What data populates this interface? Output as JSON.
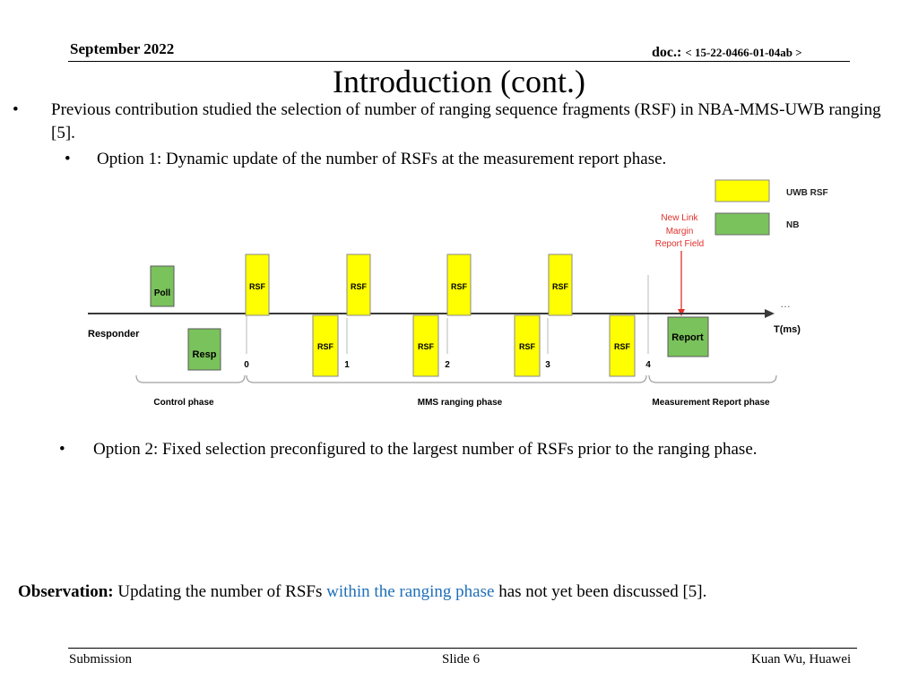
{
  "header": {
    "date": "September 2022",
    "doc_prefix": "doc.: ",
    "doc_number": "< 15-22-0466-01-04ab >"
  },
  "title": "Introduction (cont.)",
  "bullets": {
    "b1_marker": "•",
    "b1": "Previous contribution studied the selection of number of ranging sequence fragments (RSF) in NBA-MMS-UWB ranging [5].",
    "b2_marker": "•",
    "b2": "Option 1: Dynamic update of the number of RSFs at the measurement report phase.",
    "b3_marker": "•",
    "b3": "Option 2: Fixed selection preconfigured to the largest number of RSFs prior to the ranging phase."
  },
  "figure": {
    "legend_uwb": "UWB RSF",
    "legend_nb": "NB",
    "annotation_line1": "New Link",
    "annotation_line2": "Margin",
    "annotation_line3": "Report Field",
    "poll": "Poll",
    "resp": "Resp",
    "report": "Report",
    "rsf": "RSF",
    "responder": "Responder",
    "ellipsis": "…",
    "time_unit": "T(ms)",
    "ticks": [
      "0",
      "1",
      "2",
      "3",
      "4"
    ],
    "phase_control": "Control phase",
    "phase_mms": "MMS ranging phase",
    "phase_report": "Measurement Report phase",
    "colors": {
      "uwb": "#ffff00",
      "nb": "#7ac25c",
      "annotation": "#e0302a"
    }
  },
  "observation": {
    "lead": "Observation:",
    "text_before": " Updating the number of RSFs ",
    "highlight": "within the ranging phase",
    "text_after": " has not yet been discussed [5]."
  },
  "footer": {
    "left": "Submission",
    "center": "Slide 6",
    "right": "Kuan Wu, Huawei"
  }
}
